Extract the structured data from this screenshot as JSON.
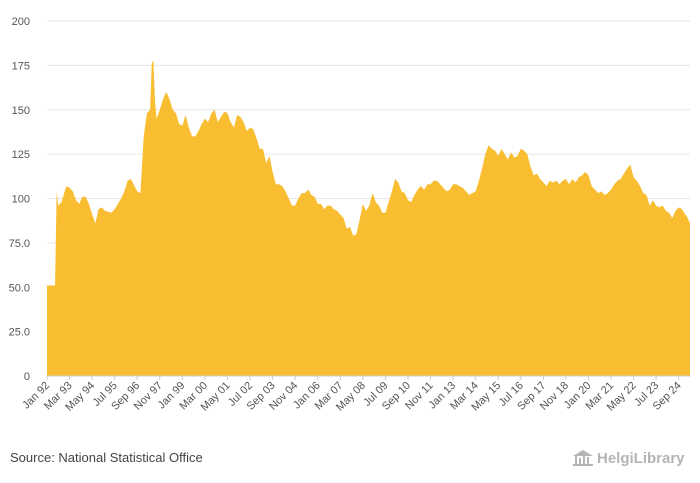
{
  "chart_data": {
    "type": "area",
    "title": "",
    "xlabel": "",
    "ylabel": "",
    "ylim": [
      0,
      200
    ],
    "yticks": [
      0,
      25.0,
      50.0,
      75.0,
      100,
      125,
      150,
      175,
      200
    ],
    "ytick_labels": [
      "0",
      "25.0",
      "50.0",
      "75.0",
      "100",
      "125",
      "150",
      "175",
      "200"
    ],
    "grid": true,
    "color": "#f9bd31",
    "start": "Jan 92",
    "frequency": "monthly",
    "xtick_labels": [
      "Jan 92",
      "Mar 93",
      "May 94",
      "Jul 95",
      "Sep 96",
      "Nov 97",
      "Jan 99",
      "Mar 00",
      "May 01",
      "Jul 02",
      "Sep 03",
      "Nov 04",
      "Jan 06",
      "Mar 07",
      "May 08",
      "Jul 09",
      "Sep 10",
      "Nov 11",
      "Jan 13",
      "Mar 14",
      "May 15",
      "Jul 16",
      "Sep 17",
      "Nov 18",
      "Jan 20",
      "Mar 21",
      "May 22",
      "Jul 23",
      "Sep 24"
    ],
    "xtick_index": [
      0,
      14,
      28,
      42,
      56,
      70,
      84,
      98,
      112,
      126,
      140,
      154,
      168,
      182,
      196,
      210,
      224,
      238,
      252,
      266,
      280,
      294,
      308,
      322,
      336,
      350,
      364,
      378,
      392
    ],
    "anchors": [
      [
        0,
        51
      ],
      [
        5,
        51
      ],
      [
        6,
        104
      ],
      [
        7,
        96
      ],
      [
        9,
        98
      ],
      [
        12,
        107
      ],
      [
        14,
        106
      ],
      [
        16,
        104
      ],
      [
        18,
        99
      ],
      [
        20,
        97
      ],
      [
        22,
        101
      ],
      [
        24,
        101
      ],
      [
        26,
        97
      ],
      [
        28,
        91
      ],
      [
        30,
        86
      ],
      [
        32,
        94
      ],
      [
        34,
        95
      ],
      [
        36,
        93
      ],
      [
        40,
        92
      ],
      [
        42,
        94
      ],
      [
        46,
        100
      ],
      [
        48,
        104
      ],
      [
        50,
        110
      ],
      [
        52,
        111
      ],
      [
        56,
        104
      ],
      [
        58,
        103
      ],
      [
        60,
        135
      ],
      [
        62,
        148
      ],
      [
        64,
        150
      ],
      [
        65,
        176
      ],
      [
        66,
        178
      ],
      [
        67,
        155
      ],
      [
        68,
        145
      ],
      [
        70,
        150
      ],
      [
        72,
        156
      ],
      [
        74,
        160
      ],
      [
        76,
        156
      ],
      [
        78,
        150
      ],
      [
        80,
        148
      ],
      [
        82,
        142
      ],
      [
        84,
        141
      ],
      [
        86,
        147
      ],
      [
        88,
        140
      ],
      [
        90,
        135
      ],
      [
        92,
        135
      ],
      [
        94,
        138
      ],
      [
        96,
        142
      ],
      [
        98,
        145
      ],
      [
        100,
        143
      ],
      [
        102,
        148
      ],
      [
        104,
        150
      ],
      [
        106,
        143
      ],
      [
        108,
        146
      ],
      [
        110,
        149
      ],
      [
        112,
        148
      ],
      [
        114,
        143
      ],
      [
        116,
        140
      ],
      [
        118,
        147
      ],
      [
        120,
        146
      ],
      [
        122,
        143
      ],
      [
        124,
        138
      ],
      [
        126,
        140
      ],
      [
        128,
        139
      ],
      [
        130,
        134
      ],
      [
        132,
        128
      ],
      [
        134,
        128
      ],
      [
        136,
        120
      ],
      [
        138,
        124
      ],
      [
        140,
        115
      ],
      [
        142,
        108
      ],
      [
        144,
        108
      ],
      [
        146,
        107
      ],
      [
        148,
        104
      ],
      [
        150,
        100
      ],
      [
        152,
        96
      ],
      [
        154,
        96
      ],
      [
        156,
        100
      ],
      [
        158,
        103
      ],
      [
        160,
        103
      ],
      [
        162,
        105
      ],
      [
        164,
        102
      ],
      [
        166,
        101
      ],
      [
        168,
        97
      ],
      [
        170,
        97
      ],
      [
        172,
        94
      ],
      [
        174,
        96
      ],
      [
        176,
        96
      ],
      [
        178,
        94
      ],
      [
        180,
        93
      ],
      [
        182,
        91
      ],
      [
        184,
        89
      ],
      [
        186,
        83
      ],
      [
        188,
        84
      ],
      [
        190,
        79
      ],
      [
        192,
        80
      ],
      [
        194,
        88
      ],
      [
        196,
        97
      ],
      [
        198,
        93
      ],
      [
        200,
        96
      ],
      [
        202,
        103
      ],
      [
        204,
        98
      ],
      [
        206,
        96
      ],
      [
        208,
        92
      ],
      [
        210,
        92
      ],
      [
        212,
        98
      ],
      [
        214,
        104
      ],
      [
        216,
        111
      ],
      [
        218,
        109
      ],
      [
        220,
        104
      ],
      [
        222,
        103
      ],
      [
        224,
        99
      ],
      [
        226,
        98
      ],
      [
        228,
        102
      ],
      [
        230,
        105
      ],
      [
        232,
        107
      ],
      [
        234,
        105
      ],
      [
        236,
        108
      ],
      [
        238,
        108
      ],
      [
        240,
        110
      ],
      [
        242,
        110
      ],
      [
        244,
        108
      ],
      [
        246,
        106
      ],
      [
        248,
        104
      ],
      [
        250,
        105
      ],
      [
        252,
        108
      ],
      [
        254,
        108
      ],
      [
        256,
        107
      ],
      [
        258,
        106
      ],
      [
        260,
        104
      ],
      [
        262,
        102
      ],
      [
        264,
        103
      ],
      [
        266,
        104
      ],
      [
        268,
        110
      ],
      [
        270,
        117
      ],
      [
        272,
        125
      ],
      [
        274,
        130
      ],
      [
        276,
        128
      ],
      [
        278,
        127
      ],
      [
        280,
        124
      ],
      [
        282,
        128
      ],
      [
        284,
        125
      ],
      [
        286,
        122
      ],
      [
        288,
        126
      ],
      [
        290,
        123
      ],
      [
        292,
        124
      ],
      [
        294,
        128
      ],
      [
        296,
        127
      ],
      [
        298,
        125
      ],
      [
        300,
        118
      ],
      [
        302,
        113
      ],
      [
        304,
        114
      ],
      [
        306,
        111
      ],
      [
        308,
        109
      ],
      [
        310,
        107
      ],
      [
        312,
        110
      ],
      [
        314,
        109
      ],
      [
        316,
        110
      ],
      [
        318,
        108
      ],
      [
        320,
        110
      ],
      [
        322,
        111
      ],
      [
        324,
        108
      ],
      [
        326,
        111
      ],
      [
        328,
        109
      ],
      [
        330,
        112
      ],
      [
        332,
        113
      ],
      [
        334,
        115
      ],
      [
        336,
        113
      ],
      [
        338,
        107
      ],
      [
        340,
        105
      ],
      [
        342,
        103
      ],
      [
        344,
        104
      ],
      [
        346,
        102
      ],
      [
        348,
        103
      ],
      [
        350,
        105
      ],
      [
        352,
        108
      ],
      [
        354,
        110
      ],
      [
        356,
        111
      ],
      [
        358,
        114
      ],
      [
        360,
        117
      ],
      [
        362,
        119
      ],
      [
        364,
        112
      ],
      [
        366,
        110
      ],
      [
        368,
        107
      ],
      [
        370,
        103
      ],
      [
        372,
        102
      ],
      [
        374,
        96
      ],
      [
        376,
        99
      ],
      [
        378,
        96
      ],
      [
        380,
        95
      ],
      [
        382,
        96
      ],
      [
        384,
        93
      ],
      [
        386,
        92
      ],
      [
        388,
        89
      ],
      [
        390,
        93
      ],
      [
        392,
        95
      ],
      [
        394,
        94
      ],
      [
        396,
        91
      ],
      [
        397,
        90
      ],
      [
        398,
        88
      ],
      [
        399,
        86
      ]
    ]
  },
  "footer": {
    "source": "Source: National Statistical Office",
    "brand": "HelgiLibrary"
  },
  "colors": {
    "area": "#f9bd31",
    "grid": "#e6e6e6",
    "axis": "#cccccc",
    "label": "#555555",
    "brand": "#b5b5b5"
  },
  "icons": {
    "brand_logo": "library-building-icon"
  }
}
